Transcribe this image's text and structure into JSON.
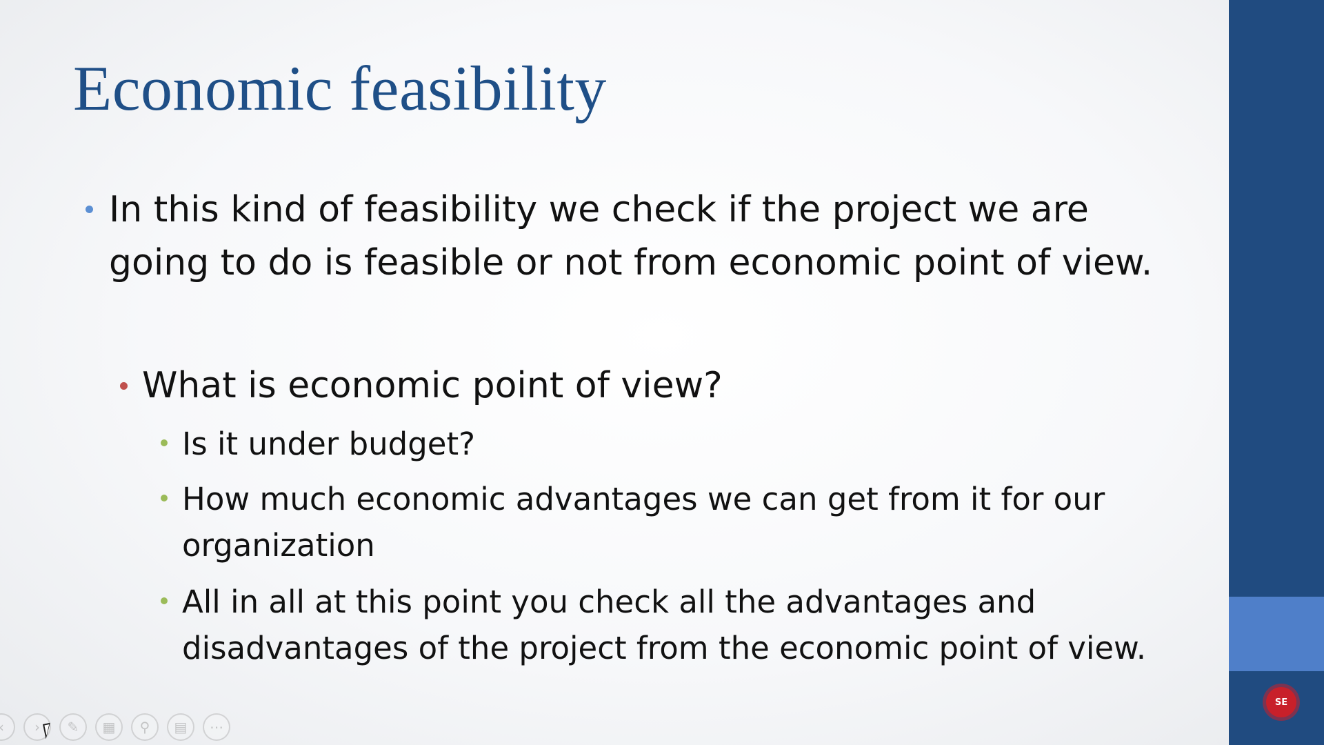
{
  "slide": {
    "title": "Economic feasibility",
    "bullets": [
      {
        "level": 1,
        "text": "In this kind of feasibility we check if the project we are going to do is feasible or not from economic point of view."
      },
      {
        "level": 2,
        "text": "What is economic point of view?"
      },
      {
        "level": 3,
        "text": "Is it under budget?"
      },
      {
        "level": 3,
        "text": "How much economic advantages we can get from it for our organization"
      },
      {
        "level": 3,
        "text": "All in all at this point you check all the advantages and disadvantages of the project from the economic point of view."
      }
    ]
  },
  "colors": {
    "title": "#1f4f87",
    "band": "#204b80",
    "band_accent": "#4f7fc9",
    "bullet_level1": "#5b8fd3",
    "bullet_level2": "#c0504d",
    "bullet_level3": "#9bbb59"
  },
  "toolbar": {
    "icons": [
      "previous-icon",
      "next-icon",
      "pen-icon",
      "slides-icon",
      "zoom-icon",
      "subtitle-icon",
      "more-options-icon"
    ]
  },
  "logo": {
    "text": "SE"
  }
}
